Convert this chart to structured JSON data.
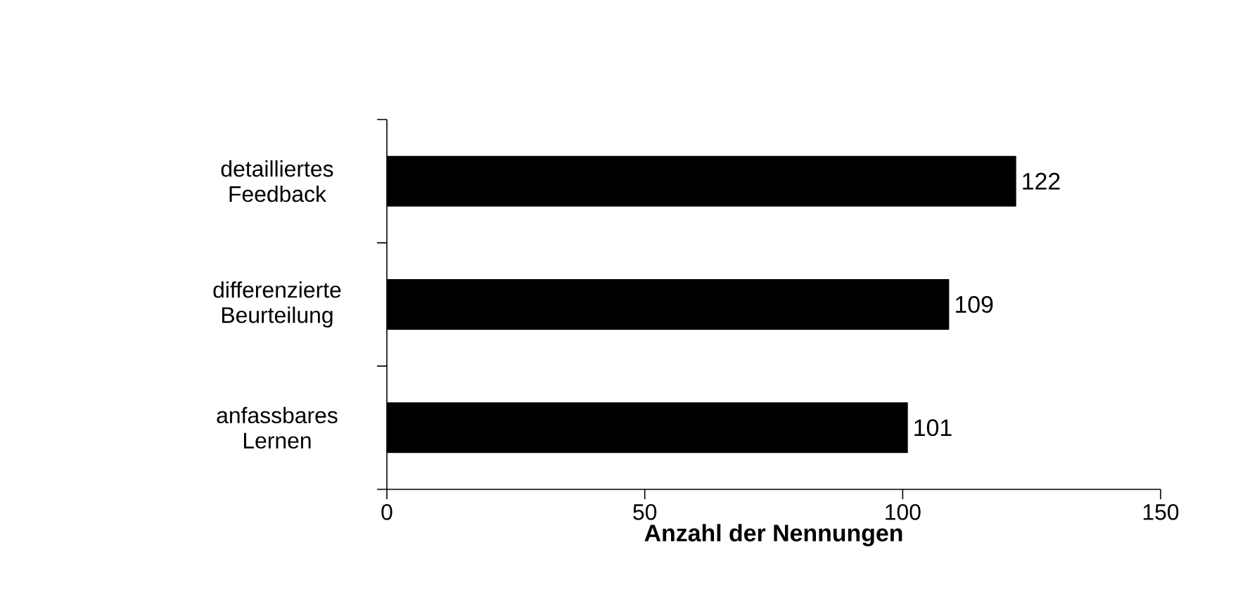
{
  "chart_data": {
    "type": "bar",
    "orientation": "horizontal",
    "xlabel": "Anzahl der Nennungen",
    "categories": [
      "detailliertes Feedback",
      "differenzierte Beurteilung",
      "anfassbares Lernen"
    ],
    "values": [
      122,
      109,
      101
    ],
    "color": "#000000",
    "data_labels": true,
    "xlim": [
      0,
      150
    ],
    "xticks": [
      0,
      50,
      100,
      150
    ],
    "grid": false
  }
}
